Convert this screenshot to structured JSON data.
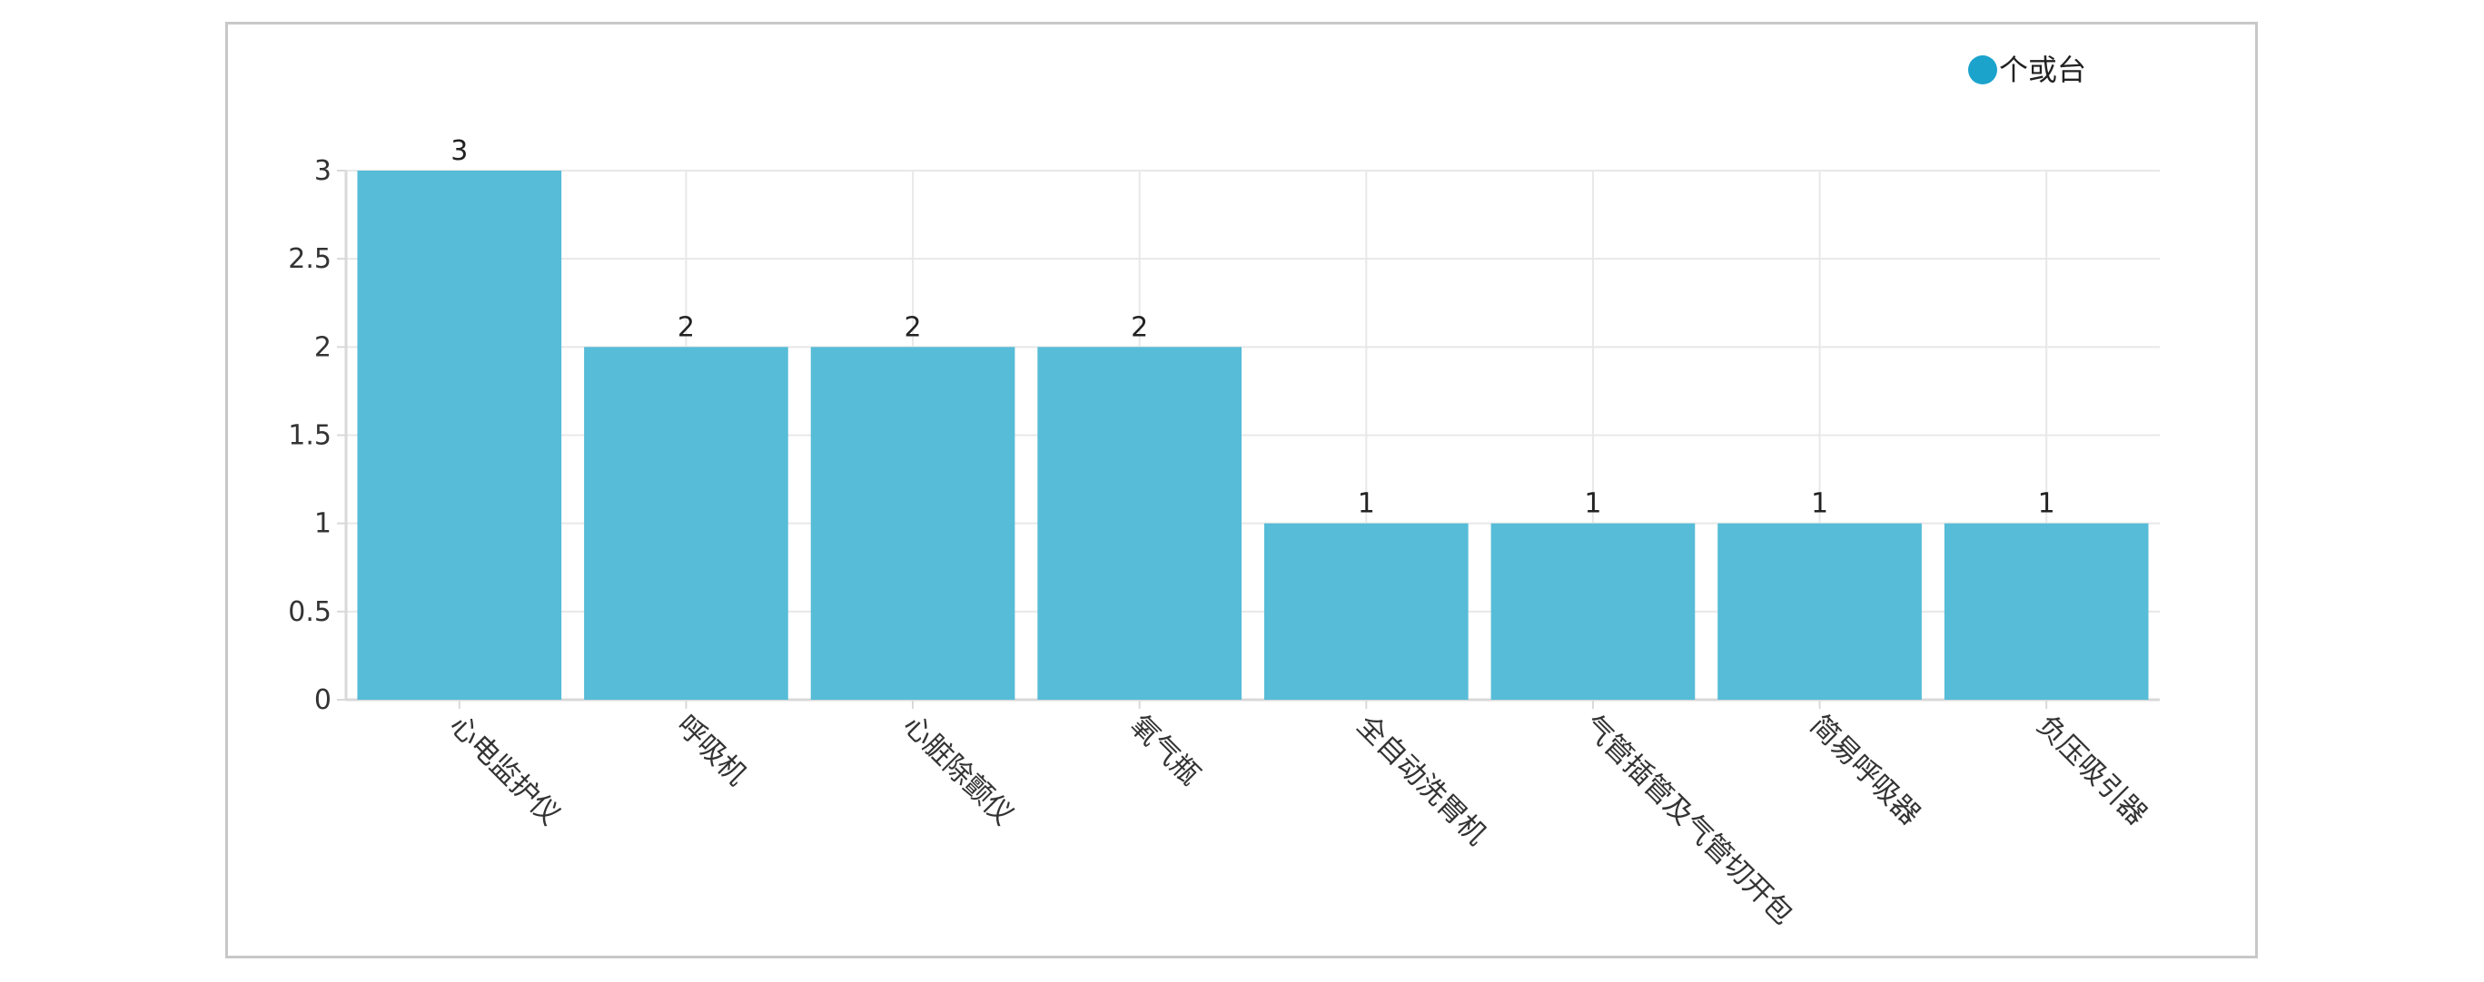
{
  "chart_data": {
    "type": "bar",
    "categories": [
      "心电监护仪",
      "呼吸机",
      "心脏除颤仪",
      "氧气瓶",
      "全自动洗胃机",
      "气管插管及气管切开包",
      "简易呼吸器",
      "负压吸引器"
    ],
    "series": [
      {
        "name": "个或台",
        "values": [
          3,
          2,
          2,
          2,
          1,
          1,
          1,
          1
        ],
        "color": "#56bcd7"
      }
    ],
    "y_ticks": [
      "0",
      "0.5",
      "1",
      "1.5",
      "2",
      "2.5",
      "3"
    ],
    "ylim": [
      0,
      3
    ],
    "grid": true,
    "legend": {
      "position": "top-right",
      "marker": "circle",
      "marker_color": "#1ba3cc"
    },
    "data_labels": true,
    "axis_color": "#d9d9d9",
    "grid_color": "#e8e8e8"
  }
}
